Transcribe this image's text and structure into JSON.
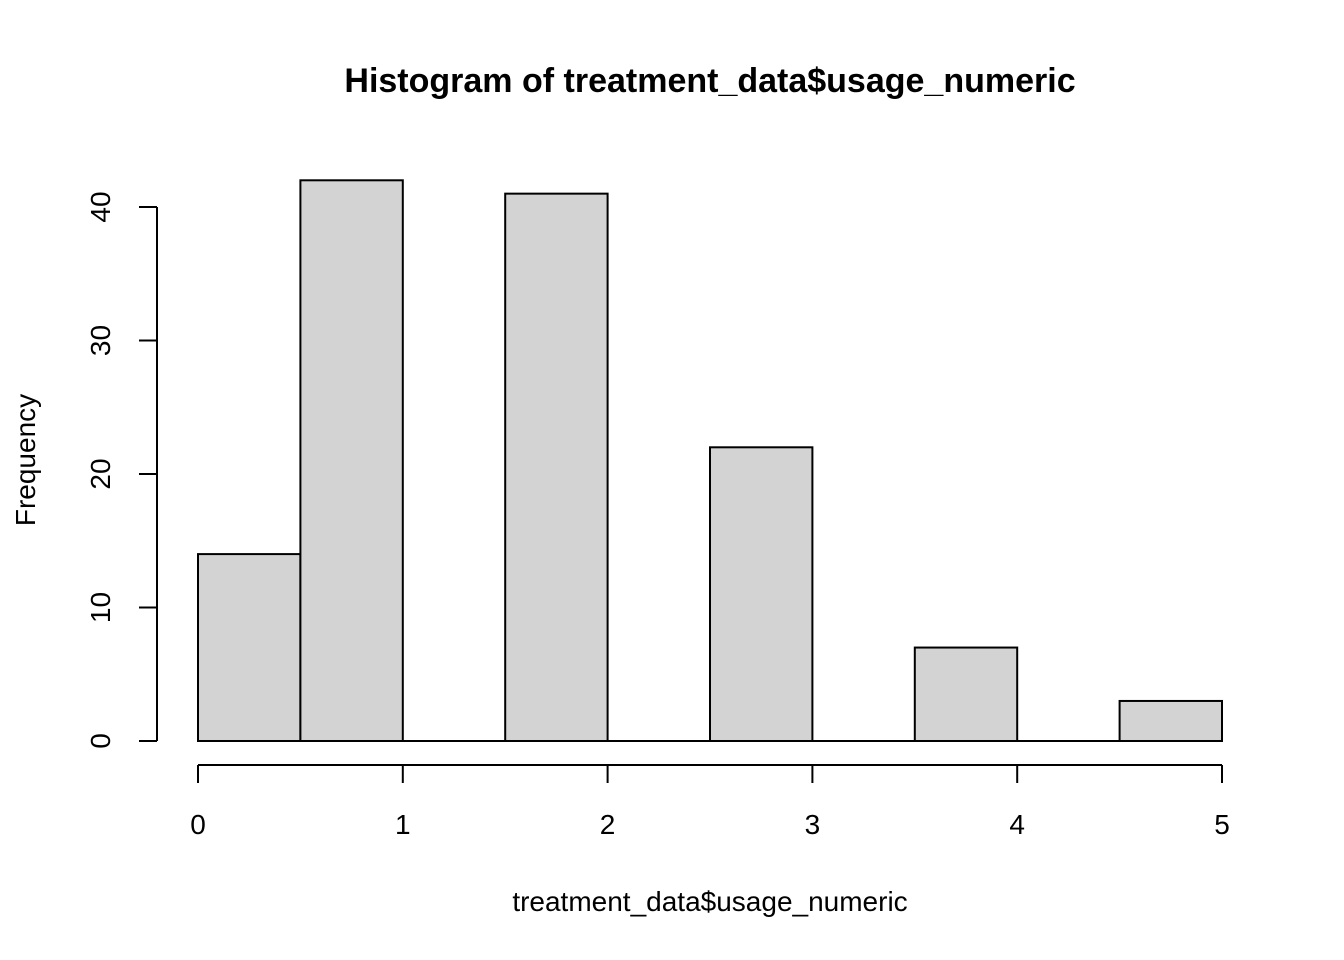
{
  "chart_data": {
    "type": "bar",
    "title": "Histogram of treatment_data$usage_numeric",
    "xlabel": "treatment_data$usage_numeric",
    "ylabel": "Frequency",
    "bin_edges": [
      0,
      0.5,
      1,
      1.5,
      2,
      2.5,
      3,
      3.5,
      4,
      4.5,
      5
    ],
    "values": [
      14,
      42,
      0,
      41,
      0,
      22,
      0,
      7,
      0,
      3
    ],
    "xlim": [
      0,
      5
    ],
    "ylim": [
      0,
      42
    ],
    "x_ticks": [
      0,
      1,
      2,
      3,
      4,
      5
    ],
    "x_tick_labels": [
      "0",
      "1",
      "2",
      "3",
      "4",
      "5"
    ],
    "y_ticks": [
      0,
      10,
      20,
      30,
      40
    ],
    "y_tick_labels": [
      "0",
      "10",
      "20",
      "30",
      "40"
    ],
    "grid": false,
    "legend": "none",
    "colors": {
      "bar_fill": "#d3d3d3",
      "bar_stroke": "#000000"
    }
  }
}
